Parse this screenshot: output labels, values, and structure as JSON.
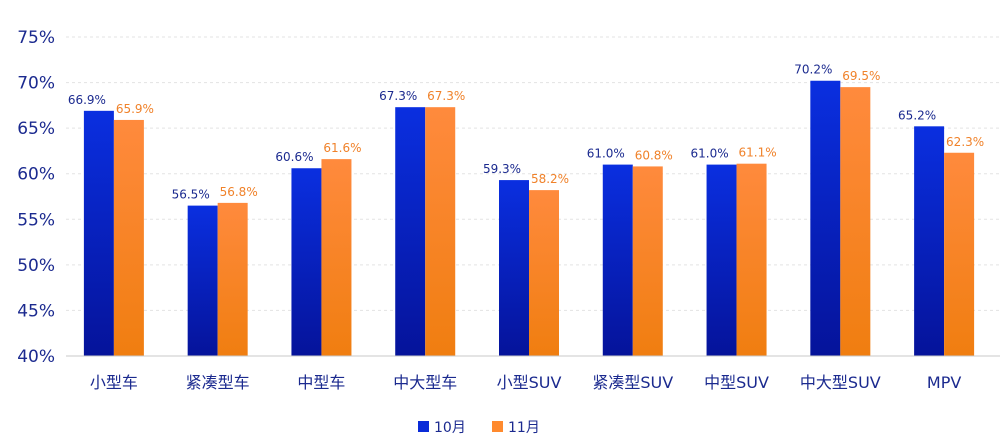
{
  "chart_data": {
    "type": "bar",
    "categories": [
      "小型车",
      "紧凑型车",
      "中型车",
      "中大型车",
      "小型SUV",
      "紧凑型SUV",
      "中型SUV",
      "中大型SUV",
      "MPV"
    ],
    "series": [
      {
        "name": "10月",
        "values": [
          66.9,
          56.5,
          60.6,
          67.3,
          59.3,
          61.0,
          61.0,
          70.2,
          65.2
        ],
        "labels": [
          "66.9%",
          "56.5%",
          "60.6%",
          "67.3%",
          "59.3%",
          "61.0%",
          "61.0%",
          "70.2%",
          "65.2%"
        ],
        "color_top": "#0a2fe0",
        "color_bottom": "#05139a",
        "label_color": "#1b2a8f"
      },
      {
        "name": "11月",
        "values": [
          65.9,
          56.8,
          61.6,
          67.3,
          58.2,
          60.8,
          61.1,
          69.5,
          62.3
        ],
        "labels": [
          "65.9%",
          "56.8%",
          "61.6%",
          "67.3%",
          "58.2%",
          "60.8%",
          "61.1%",
          "69.5%",
          "62.3%"
        ],
        "color_top": "#ff8a3d",
        "color_bottom": "#f07e10",
        "label_color": "#f0822a"
      }
    ],
    "ylim": [
      40,
      75
    ],
    "yticks": [
      "40%",
      "45%",
      "50%",
      "55%",
      "60%",
      "65%",
      "70%",
      "75%"
    ],
    "ytick_values": [
      40,
      45,
      50,
      55,
      60,
      65,
      70,
      75
    ],
    "grid": true,
    "legend_position": "bottom-center",
    "title": "",
    "xlabel": "",
    "ylabel": ""
  }
}
